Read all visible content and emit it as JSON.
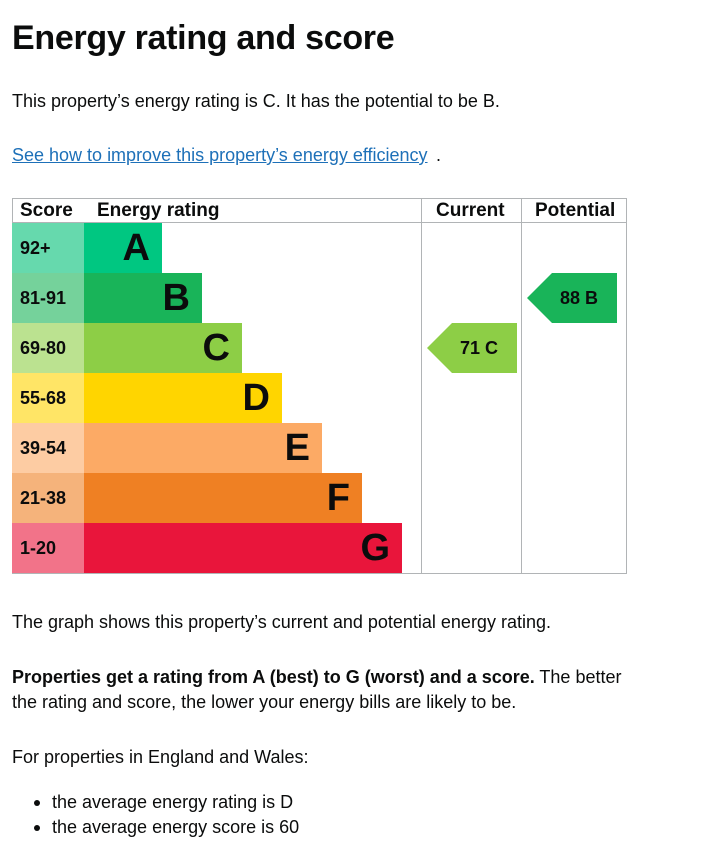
{
  "page": {
    "title": "Energy rating and score",
    "intro": "This property’s energy rating is C. It has the potential to be B.",
    "improve_link": "See how to improve this property’s energy efficiency",
    "link_suffix": "."
  },
  "chart_data": {
    "type": "table",
    "headers": {
      "score": "Score",
      "rating": "Energy rating",
      "current": "Current",
      "potential": "Potential"
    },
    "bands": [
      {
        "letter": "A",
        "range": "92+",
        "bar_color": "#00c781",
        "score_bg": "#66d9ad"
      },
      {
        "letter": "B",
        "range": "81-91",
        "bar_color": "#19b459",
        "score_bg": "#75d29b"
      },
      {
        "letter": "C",
        "range": "69-80",
        "bar_color": "#8dce46",
        "score_bg": "#bbe290"
      },
      {
        "letter": "D",
        "range": "55-68",
        "bar_color": "#ffd500",
        "score_bg": "#ffe566"
      },
      {
        "letter": "E",
        "range": "39-54",
        "bar_color": "#fcaa65",
        "score_bg": "#fdcca3"
      },
      {
        "letter": "F",
        "range": "21-38",
        "bar_color": "#ef8023",
        "score_bg": "#f5b37b"
      },
      {
        "letter": "G",
        "range": "1-20",
        "bar_color": "#e9153b",
        "score_bg": "#f27389"
      }
    ],
    "current": {
      "score": 71,
      "letter": "C",
      "label": "71 C",
      "color": "#8dce46"
    },
    "potential": {
      "score": 88,
      "letter": "B",
      "label": "88 B",
      "color": "#19b459"
    }
  },
  "explanation": {
    "graph_note": "The graph shows this property’s current and potential energy rating.",
    "rating_bold": "Properties get a rating from A (best) to G (worst) and a score.",
    "rating_line1_rest": " The better",
    "rating_line2": "the rating and score, the lower your energy bills are likely to be."
  },
  "averages": {
    "heading": "For properties in England and Wales:",
    "items": [
      "the average energy rating is D",
      "the average energy score is 60"
    ]
  }
}
